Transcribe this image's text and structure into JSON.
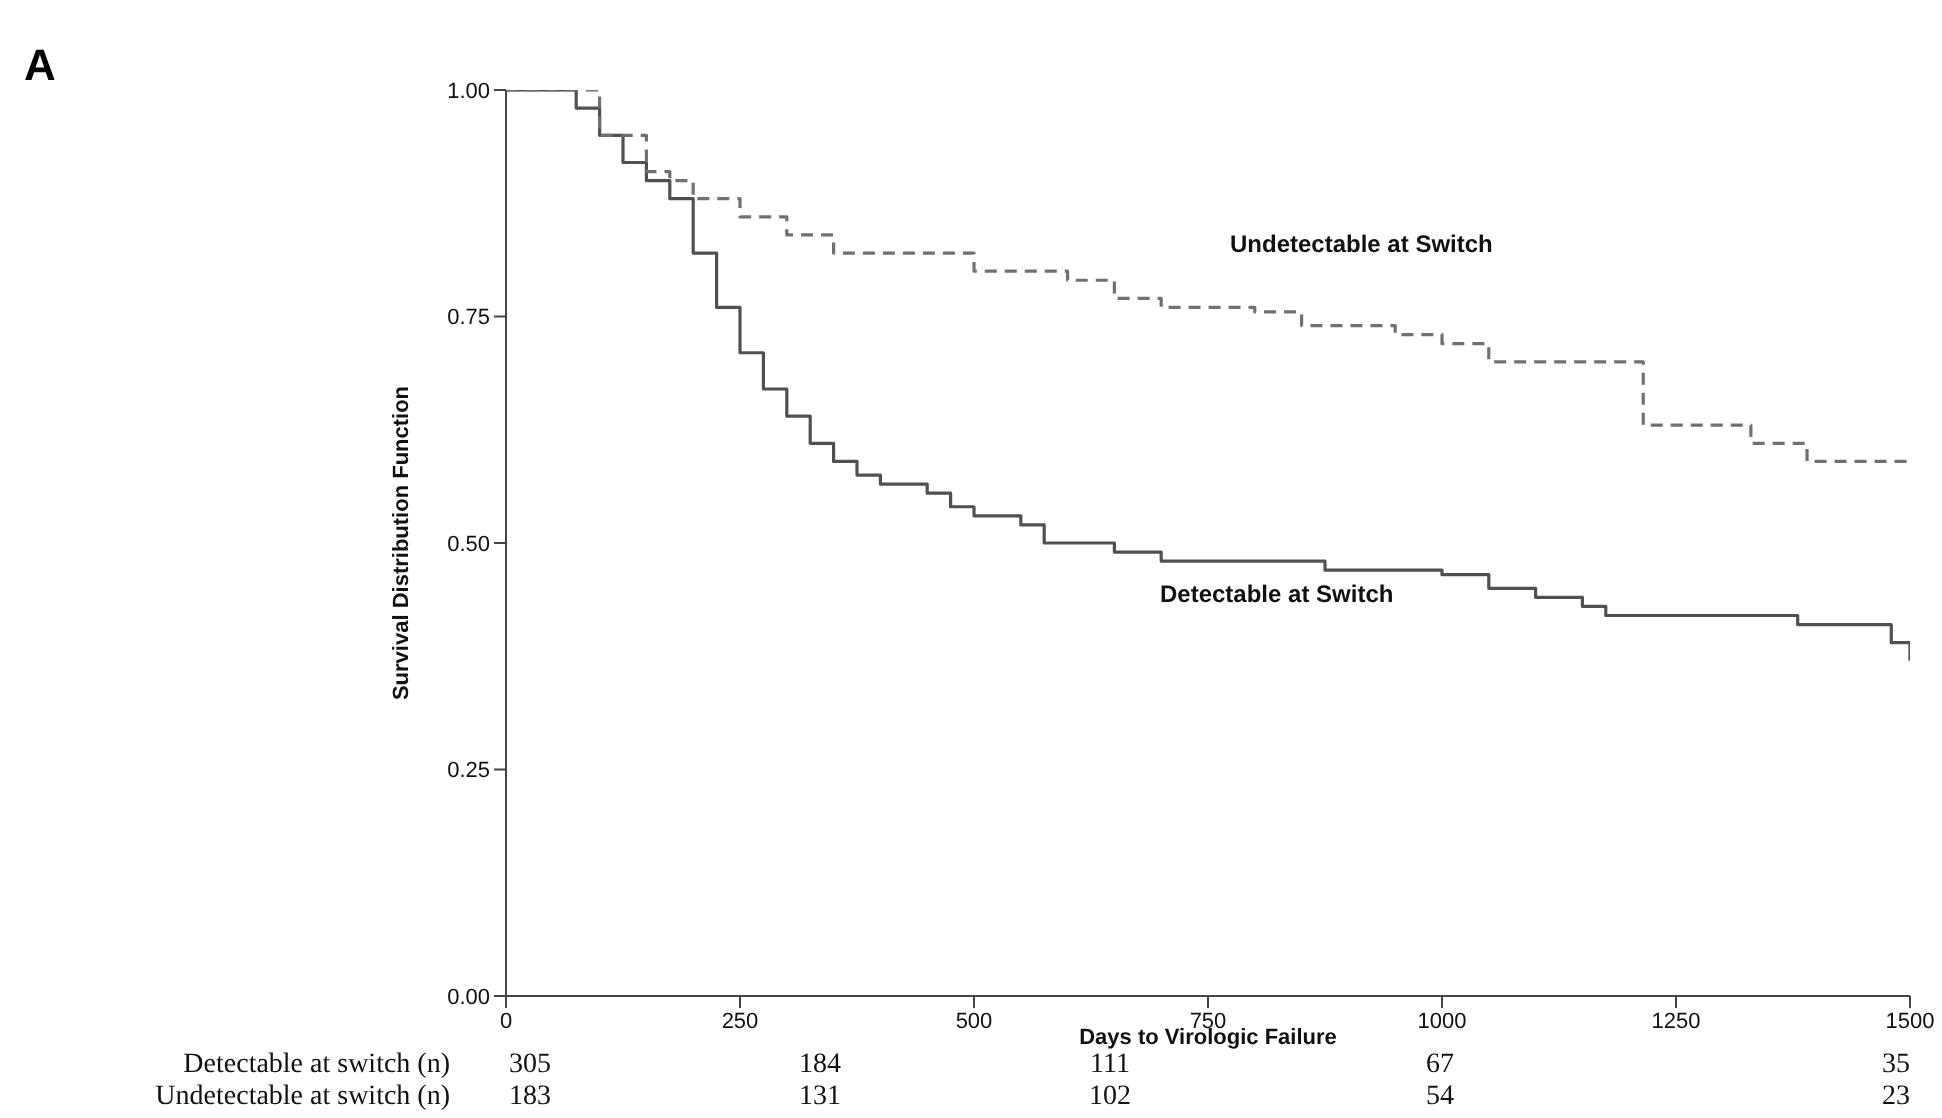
{
  "chart_data": {
    "type": "step",
    "title": "A",
    "xlabel": "Days to Virologic Failure",
    "ylabel": "Survival Distribution Function",
    "xlim": [
      0,
      1500
    ],
    "xticks": [
      0,
      250,
      500,
      750,
      1000,
      1250,
      1500
    ],
    "ylim": [
      0,
      1
    ],
    "yticks": [
      {
        "value": 0,
        "label": "0.00"
      },
      {
        "value": 0.25,
        "label": "0.25"
      },
      {
        "value": 0.5,
        "label": "0.50"
      },
      {
        "value": 0.75,
        "label": "0.75"
      },
      {
        "value": 1,
        "label": "1.00"
      }
    ],
    "marker": "none",
    "series": [
      {
        "name": "Detectable at Switch",
        "color": "#505050",
        "line_style": "solid",
        "x": [
          0,
          50,
          75,
          100,
          125,
          150,
          175,
          200,
          225,
          250,
          275,
          300,
          325,
          350,
          375,
          400,
          450,
          475,
          500,
          550,
          575,
          650,
          700,
          850,
          875,
          1000,
          1050,
          1100,
          1150,
          1175,
          1350,
          1380,
          1460,
          1480,
          1500
        ],
        "values": [
          1.0,
          1.0,
          0.98,
          0.95,
          0.92,
          0.9,
          0.88,
          0.82,
          0.76,
          0.71,
          0.67,
          0.64,
          0.61,
          0.59,
          0.575,
          0.565,
          0.555,
          0.54,
          0.53,
          0.52,
          0.5,
          0.49,
          0.48,
          0.48,
          0.47,
          0.465,
          0.45,
          0.44,
          0.43,
          0.42,
          0.42,
          0.41,
          0.41,
          0.39,
          0.37
        ]
      },
      {
        "name": "Undetectable at Switch",
        "color": "#707070",
        "line_style": "dashed",
        "x": [
          0,
          50,
          100,
          150,
          175,
          200,
          250,
          300,
          350,
          450,
          500,
          600,
          650,
          700,
          800,
          850,
          950,
          1000,
          1050,
          1200,
          1215,
          1300,
          1330,
          1375,
          1390,
          1500
        ],
        "values": [
          1.0,
          1.0,
          0.95,
          0.91,
          0.9,
          0.88,
          0.86,
          0.84,
          0.82,
          0.82,
          0.8,
          0.79,
          0.77,
          0.76,
          0.755,
          0.74,
          0.73,
          0.72,
          0.7,
          0.7,
          0.63,
          0.63,
          0.61,
          0.61,
          0.59,
          0.59
        ]
      }
    ],
    "annotations": [
      "Detectable at switch (n)",
      "305",
      "184",
      "111",
      "67",
      "35",
      "Undetectable at switch (n)",
      "183",
      "131",
      "102",
      "54",
      "23"
    ]
  }
}
